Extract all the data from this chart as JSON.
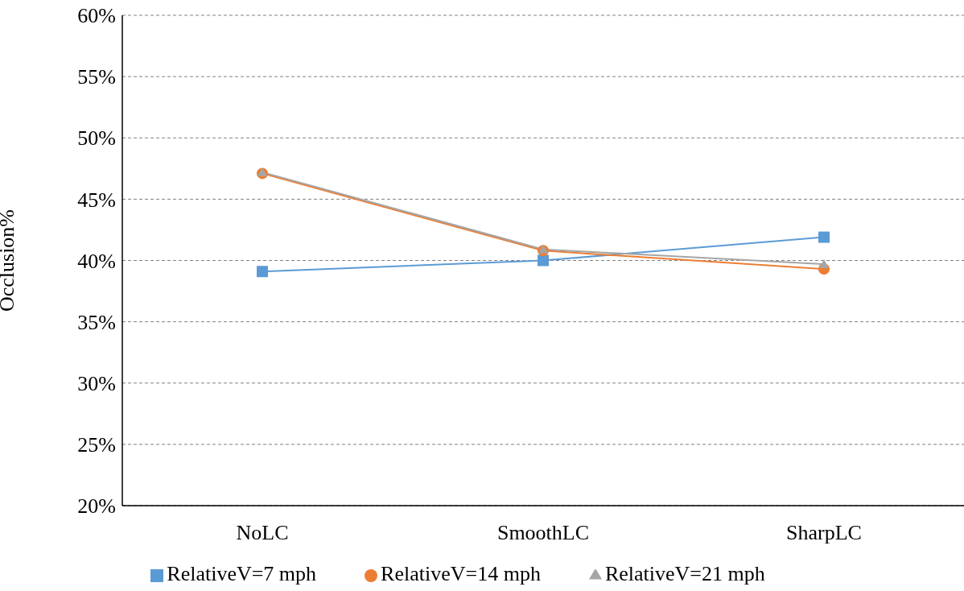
{
  "chart_data": {
    "type": "line",
    "ylabel": "Occlusion%",
    "categories": [
      "NoLC",
      "SmoothLC",
      "SharpLC"
    ],
    "series": [
      {
        "name": "RelativeV=7 mph",
        "color": "#5b9bd5",
        "marker": "square",
        "values": [
          39.1,
          40.0,
          41.9
        ]
      },
      {
        "name": "RelativeV=14 mph",
        "color": "#ed7d31",
        "marker": "circle",
        "values": [
          47.1,
          40.8,
          39.3
        ]
      },
      {
        "name": "RelativeV=21 mph",
        "color": "#a5a5a5",
        "marker": "triangle",
        "values": [
          47.2,
          40.9,
          39.7
        ]
      }
    ],
    "ylim": [
      20,
      60
    ],
    "yticks": [
      {
        "value": 20,
        "label": "20%"
      },
      {
        "value": 25,
        "label": "25%"
      },
      {
        "value": 30,
        "label": "30%"
      },
      {
        "value": 35,
        "label": "35%"
      },
      {
        "value": 40,
        "label": "40%"
      },
      {
        "value": 45,
        "label": "45%"
      },
      {
        "value": 50,
        "label": "50%"
      },
      {
        "value": 55,
        "label": "55%"
      },
      {
        "value": 60,
        "label": "60%"
      }
    ],
    "grid": "y",
    "legend": "bottom",
    "line_style": "solid"
  }
}
